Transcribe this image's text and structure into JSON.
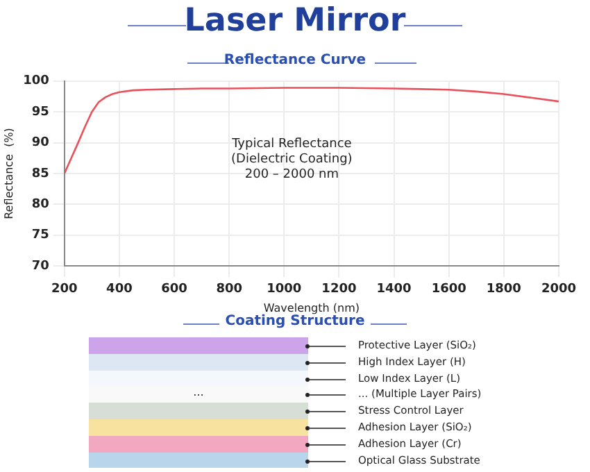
{
  "chart_data": {
    "type": "line",
    "title": "Laser Mirror",
    "subtitle": "Reflectance Curve",
    "xlabel": "Wavelength (nm)",
    "ylabel": "Reflectance  (%)",
    "x": [
      200,
      225,
      250,
      275,
      300,
      325,
      350,
      375,
      400,
      450,
      500,
      600,
      700,
      800,
      1000,
      1200,
      1400,
      1500,
      1600,
      1700,
      1800,
      1900,
      2000
    ],
    "series": [
      {
        "color": "#e8505b",
        "values": [
          85,
          87.5,
          90,
          92.6,
          95,
          96.6,
          97.4,
          97.9,
          98.2,
          98.5,
          98.6,
          98.7,
          98.8,
          98.8,
          98.9,
          98.9,
          98.8,
          98.7,
          98.6,
          98.3,
          97.9,
          97.3,
          96.7
        ]
      }
    ],
    "xlim": [
      200,
      2000
    ],
    "xticks": [
      200,
      400,
      600,
      800,
      1000,
      1200,
      1400,
      1600,
      1800,
      2000
    ],
    "ylim": [
      70,
      100
    ],
    "yticks": [
      70,
      75,
      80,
      85,
      90,
      95,
      100
    ],
    "grid": true,
    "legend": false,
    "marker": "none",
    "line_style": "solid",
    "annotations": [
      "Typical Reflectance",
      "(Dielectric Coating)",
      "200 – 2000 nm",
      "Coating Structure",
      "...",
      "Protective Layer (SiO₂)",
      "High Index Layer (H)",
      "Low Index Layer (L)",
      "... (Multiple Layer Pairs)",
      "Stress Control Layer",
      "Adhesion Layer (SiO₂)",
      "Adhesion Layer (Cr)",
      "Optical Glass Substrate"
    ]
  }
}
